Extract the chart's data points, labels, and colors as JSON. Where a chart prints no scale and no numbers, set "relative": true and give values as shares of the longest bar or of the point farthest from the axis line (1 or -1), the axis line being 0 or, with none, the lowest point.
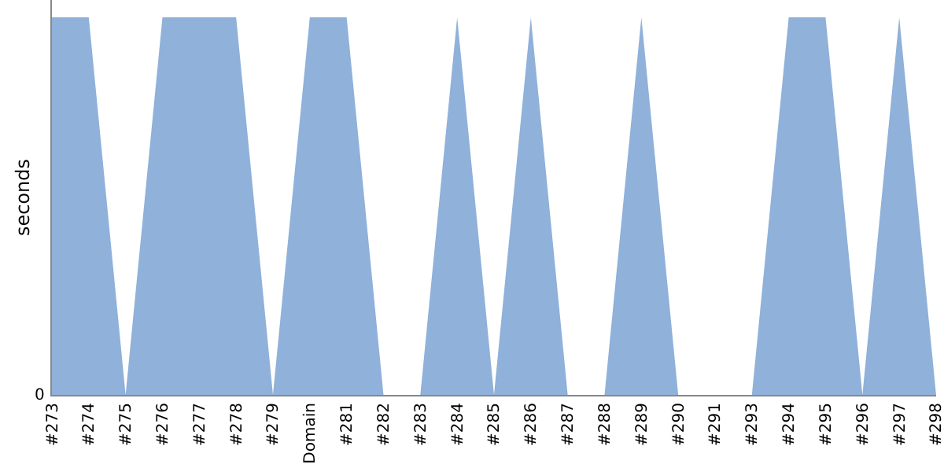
{
  "chart_data": {
    "type": "area",
    "relative": true,
    "ylabel": "seconds",
    "categories": [
      "#273",
      "#274",
      "#275",
      "#276",
      "#277",
      "#278",
      "#279",
      "Domain",
      "#281",
      "#282",
      "#283",
      "#284",
      "#285",
      "#286",
      "#287",
      "#288",
      "#289",
      "#290",
      "#291",
      "#293",
      "#294",
      "#295",
      "#296",
      "#297",
      "#298"
    ],
    "series": [
      {
        "color": "#8fb1da",
        "values": [
          1,
          1,
          0,
          1,
          1,
          1,
          0,
          1,
          1,
          0,
          0,
          1,
          0,
          1,
          0,
          0,
          1,
          0,
          0,
          0,
          1,
          1,
          0,
          1,
          0
        ]
      }
    ],
    "annotations": [
      "0"
    ],
    "grid": false,
    "legend": false
  }
}
